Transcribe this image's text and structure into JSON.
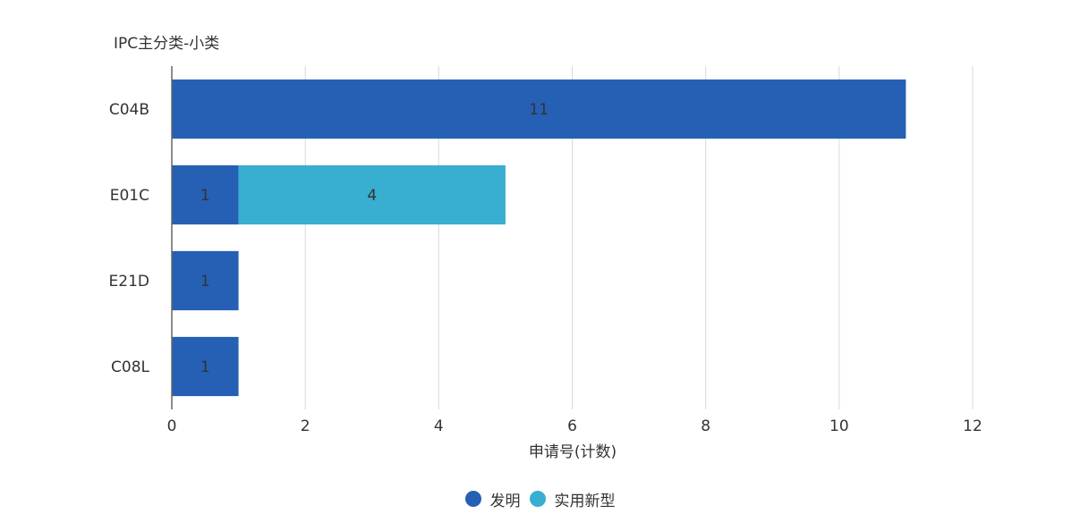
{
  "colors": {
    "发明": "#2560b4",
    "实用新型": "#38aed0",
    "grid": "#d5d9e4",
    "axis": "#666666",
    "text": "#333333"
  },
  "chart_data": {
    "type": "bar",
    "orientation": "horizontal",
    "stacked": true,
    "ylabel": "IPC主分类-小类",
    "xlabel": "申请号(计数)",
    "categories": [
      "C04B",
      "E01C",
      "E21D",
      "C08L"
    ],
    "series": [
      {
        "name": "发明",
        "values": [
          11,
          1,
          1,
          1
        ]
      },
      {
        "name": "实用新型",
        "values": [
          0,
          4,
          0,
          0
        ]
      }
    ],
    "xlim": [
      0,
      12
    ],
    "xticks": [
      0,
      2,
      4,
      6,
      8,
      10,
      12
    ],
    "grid": true,
    "legend": "bottom-center"
  }
}
